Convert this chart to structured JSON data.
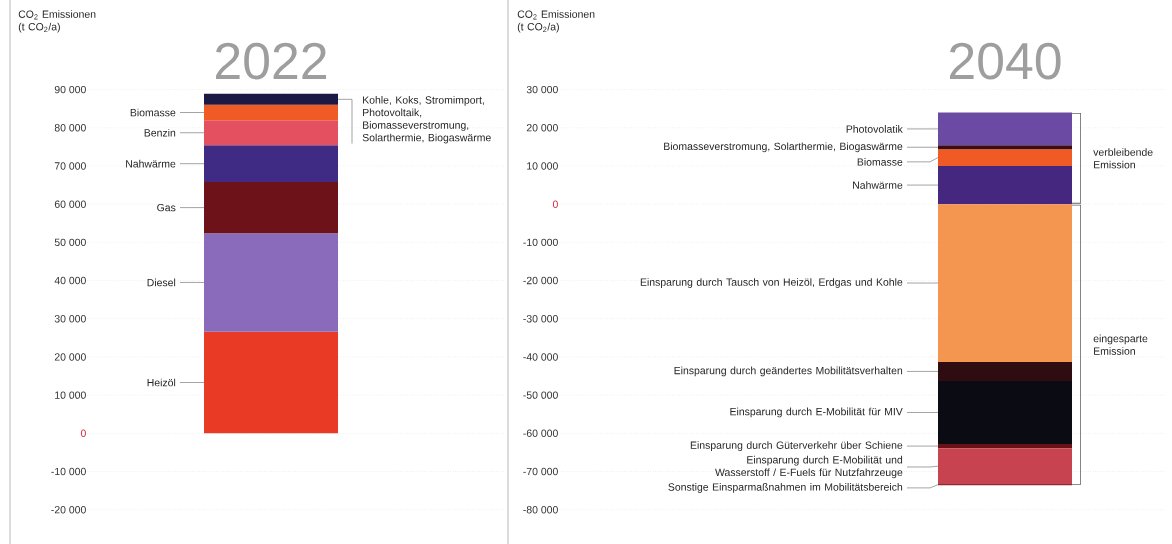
{
  "chart_data": [
    {
      "type": "bar",
      "stacked": true,
      "title": "2022",
      "ylabel": "CO$_{2}$ Emissionen (t CO$_{2}$/a)",
      "categories": [
        null
      ],
      "grid": "y",
      "ylim": [
        -20000,
        90000
      ],
      "yticks": [
        {
          "value": 90000,
          "label": "90 000"
        },
        {
          "value": 80000,
          "label": "80 000"
        },
        {
          "value": 70000,
          "label": "70 000"
        },
        {
          "value": 60000,
          "label": "60 000"
        },
        {
          "value": 50000,
          "label": "50 000"
        },
        {
          "value": 40000,
          "label": "40 000"
        },
        {
          "value": 30000,
          "label": "30 000"
        },
        {
          "value": 20000,
          "label": "20 000"
        },
        {
          "value": 10000,
          "label": "10 000"
        },
        0,
        {
          "value": -10000,
          "label": "-10 000"
        },
        {
          "value": -20000,
          "label": "-20 000"
        }
      ],
      "series": [
        {
          "name": "Heizöl",
          "color": "#e83a24",
          "values": [
            26600
          ]
        },
        {
          "name": "Diesel",
          "color": "#8a6bbb",
          "values": [
            25800
          ]
        },
        {
          "name": "Gas",
          "color": "#6e1219",
          "values": [
            13400
          ]
        },
        {
          "name": "Nahwärme",
          "color": "#3f2a84",
          "values": [
            9600
          ]
        },
        {
          "name": "Benzin",
          "color": "#e4505f",
          "values": [
            6600
          ]
        },
        {
          "name": "Biomasse",
          "color": "#f05a24",
          "values": [
            4000
          ]
        },
        {
          "name": "Kohle, Koks, Stromimport, Photovoltaik, Biomasseverstromung, Solarthermie, Biogaswärme",
          "color": "#1c1a45",
          "values": [
            2900
          ]
        }
      ]
    },
    {
      "type": "bar",
      "stacked": true,
      "title": "2040",
      "ylabel": "CO$_{2}$ Emissionen (t CO$_{2}$/a)",
      "categories": [
        null
      ],
      "grid": "y",
      "ylim": [
        -80000,
        30000
      ],
      "yticks": [
        {
          "value": 30000,
          "label": "30 000"
        },
        {
          "value": 20000,
          "label": "20 000"
        },
        {
          "value": 10000,
          "label": "10 000"
        },
        0,
        {
          "value": -10000,
          "label": "-10 000"
        },
        {
          "value": -20000,
          "label": "-20 000"
        },
        {
          "value": -30000,
          "label": "-30 000"
        },
        {
          "value": -40000,
          "label": "-40 000"
        },
        {
          "value": -50000,
          "label": "-50 000"
        },
        {
          "value": -60000,
          "label": "-60 000"
        },
        {
          "value": -70000,
          "label": "-70 000"
        },
        {
          "value": -80000,
          "label": "-80 000"
        }
      ],
      "annotations": [
        "verbleibende Emission",
        "eingesparte Emission"
      ],
      "series": [
        {
          "name": "Nahwärme",
          "color": "#45277f",
          "values": [
            10000
          ]
        },
        {
          "name": "Biomasse",
          "color": "#f05a24",
          "values": [
            4400
          ]
        },
        {
          "name": "Biomasseverstromung, Solarthermie, Biogaswärme",
          "color": "#3a0d14",
          "values": [
            1000
          ]
        },
        {
          "name": "Photovolatik",
          "color": "#6a4aa3",
          "values": [
            8600
          ]
        },
        {
          "name": "Einsparung durch Tausch von Heizöl, Erdgas und Kohle",
          "color": "#f49550",
          "values": [
            -41300
          ]
        },
        {
          "name": "Einsparung durch geändertes Mobilitätsverhalten",
          "color": "#2e0c12",
          "values": [
            -5000
          ]
        },
        {
          "name": "Einsparung durch E-Mobilität für MIV",
          "color": "#0b0b14",
          "values": [
            -16500
          ]
        },
        {
          "name": "Einsparung durch Güterverkehr über Schiene",
          "color": "#6a1018",
          "values": [
            -1100
          ]
        },
        {
          "name": "Einsparung durch E-Mobilität und Wasserstoff / E-Fuels für Nutzfahrzeuge",
          "color": "#c7434f",
          "values": [
            -9400
          ]
        },
        {
          "name": "Sonstige Einsparmaßnahmen im Mobilitätsbereich",
          "color": "#8a2a32",
          "values": [
            -300
          ]
        }
      ]
    }
  ]
}
